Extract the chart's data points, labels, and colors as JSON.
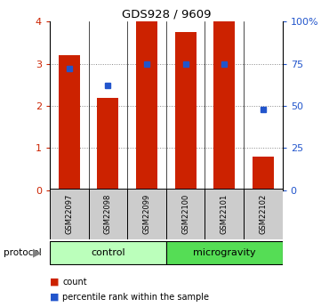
{
  "title": "GDS928 / 9609",
  "samples": [
    "GSM22097",
    "GSM22098",
    "GSM22099",
    "GSM22100",
    "GSM22101",
    "GSM22102"
  ],
  "counts": [
    3.2,
    2.2,
    4.0,
    3.75,
    4.0,
    0.8
  ],
  "percentiles": [
    72,
    62,
    75,
    75,
    75,
    48
  ],
  "groups": [
    {
      "label": "control",
      "start": 0,
      "end": 3,
      "color": "#bbffbb"
    },
    {
      "label": "microgravity",
      "start": 3,
      "end": 6,
      "color": "#55dd55"
    }
  ],
  "left_ylim": [
    0,
    4
  ],
  "right_ylim": [
    0,
    100
  ],
  "left_yticks": [
    0,
    1,
    2,
    3,
    4
  ],
  "right_yticks": [
    0,
    25,
    50,
    75,
    100
  ],
  "right_yticklabels": [
    "0",
    "25",
    "50",
    "75",
    "100%"
  ],
  "bar_color": "#cc2200",
  "dot_color": "#2255cc",
  "bar_width": 0.55,
  "grid_color": "#888888",
  "sample_box_color": "#cccccc",
  "protocol_label": "protocol",
  "legend_items": [
    {
      "label": "count",
      "color": "#cc2200"
    },
    {
      "label": "percentile rank within the sample",
      "color": "#2255cc"
    }
  ]
}
